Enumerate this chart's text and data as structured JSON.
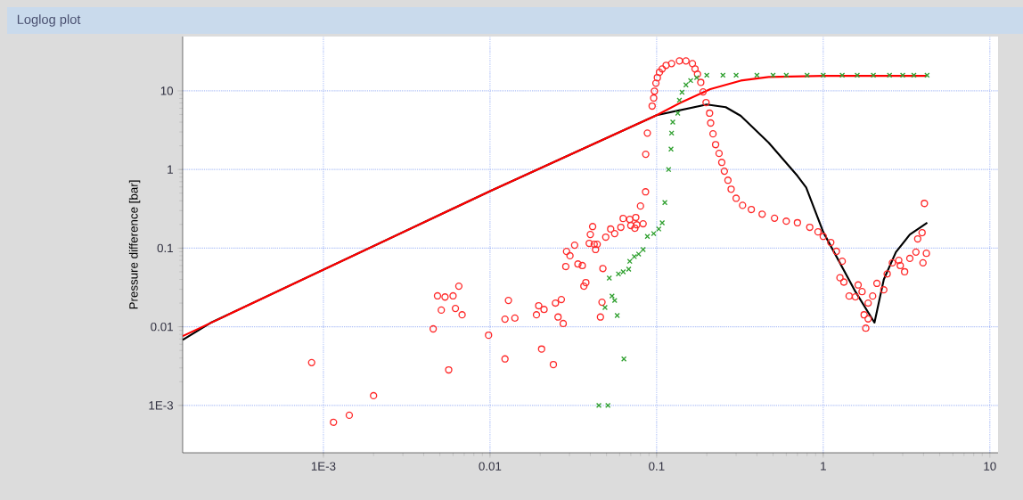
{
  "chart_data": {
    "type": "scatter",
    "title": "Loglog plot",
    "ylabel": "Pressure difference [bar]",
    "log": "xy",
    "grid": true,
    "xlim": [
      0.000143,
      11.2
    ],
    "ylim": [
      0.00025,
      49
    ],
    "xticks": [
      {
        "value": 0.001,
        "label": "1E-3"
      },
      0.01,
      0.1,
      1,
      10
    ],
    "yticks": [
      {
        "value": 0.001,
        "label": "1E-3"
      },
      0.01,
      0.1,
      1,
      10
    ],
    "series": [
      {
        "marker": "circle",
        "color": "#ff2a2a",
        "x": [
          0.00085,
          0.00115,
          0.00143,
          0.002,
          0.00456,
          0.00484,
          0.00537,
          0.006,
          0.0065,
          0.0051,
          0.0062,
          0.0068,
          0.00565,
          0.0098,
          0.0123,
          0.0123,
          0.0141,
          0.0129,
          0.0196,
          0.0211,
          0.019,
          0.0204,
          0.024,
          0.0247,
          0.0268,
          0.0256,
          0.0275,
          0.0366,
          0.0376,
          0.0285,
          0.0337,
          0.0358,
          0.0288,
          0.0302,
          0.0322,
          0.0394,
          0.0422,
          0.044,
          0.043,
          0.0413,
          0.04,
          0.0476,
          0.047,
          0.046,
          0.0495,
          0.053,
          0.056,
          0.061,
          0.063,
          0.069,
          0.075,
          0.076,
          0.074,
          0.083,
          0.08,
          0.07,
          0.0858,
          0.086,
          0.088,
          0.094,
          0.096,
          0.097,
          0.099,
          0.101,
          0.104,
          0.108,
          0.114,
          0.123,
          0.137,
          0.15,
          0.164,
          0.17,
          0.176,
          0.184,
          0.19,
          0.198,
          0.208,
          0.211,
          0.218,
          0.226,
          0.237,
          0.246,
          0.255,
          0.268,
          0.28,
          0.3,
          0.328,
          0.37,
          0.43,
          0.51,
          0.6,
          0.7,
          0.83,
          0.93,
          1.0,
          1.11,
          1.2,
          1.3,
          1.26,
          1.33,
          1.43,
          1.62,
          1.71,
          1.56,
          1.86,
          1.98,
          1.76,
          1.86,
          1.8,
          2.1,
          2.31,
          2.42,
          2.6,
          2.84,
          3.08,
          3.31,
          3.6,
          3.97,
          4.16,
          3.69,
          3.92,
          4.05,
          2.9
        ],
        "values": [
          0.0035,
          0.00061,
          0.00075,
          0.00133,
          0.0094,
          0.0247,
          0.0239,
          0.0247,
          0.0328,
          0.0163,
          0.0171,
          0.0142,
          0.00283,
          0.0078,
          0.0039,
          0.0125,
          0.0129,
          0.0216,
          0.0185,
          0.0166,
          0.0142,
          0.0052,
          0.0033,
          0.02,
          0.0222,
          0.0133,
          0.011,
          0.0328,
          0.0364,
          0.0583,
          0.0628,
          0.06,
          0.0906,
          0.08,
          0.109,
          0.115,
          0.112,
          0.112,
          0.096,
          0.188,
          0.149,
          0.055,
          0.0205,
          0.0133,
          0.138,
          0.175,
          0.153,
          0.184,
          0.238,
          0.232,
          0.245,
          0.198,
          0.179,
          0.204,
          0.343,
          0.194,
          0.52,
          1.56,
          2.9,
          6.4,
          8.1,
          9.9,
          12.5,
          14.7,
          17.2,
          19.0,
          21.1,
          22.2,
          24,
          24,
          22.2,
          19.0,
          16.3,
          12.8,
          9.7,
          7.1,
          5.2,
          3.9,
          2.84,
          2.07,
          1.6,
          1.23,
          0.95,
          0.73,
          0.56,
          0.43,
          0.35,
          0.31,
          0.27,
          0.24,
          0.22,
          0.21,
          0.184,
          0.161,
          0.141,
          0.118,
          0.091,
          0.068,
          0.042,
          0.037,
          0.0246,
          0.034,
          0.028,
          0.024,
          0.02,
          0.0246,
          0.0142,
          0.0126,
          0.0096,
          0.0356,
          0.0295,
          0.047,
          0.065,
          0.07,
          0.05,
          0.074,
          0.089,
          0.065,
          0.086,
          0.131,
          0.157,
          0.37,
          0.06
        ]
      },
      {
        "marker": "cross",
        "color": "#30a030",
        "x": [
          0.045,
          0.051,
          0.0636,
          0.049,
          0.054,
          0.056,
          0.058,
          0.052,
          0.059,
          0.063,
          0.068,
          0.069,
          0.0735,
          0.078,
          0.083,
          0.088,
          0.096,
          0.103,
          0.108,
          0.112,
          0.118,
          0.122,
          0.123,
          0.125,
          0.134,
          0.137,
          0.142,
          0.15,
          0.16,
          0.174,
          0.2,
          0.25,
          0.3,
          0.4,
          0.5,
          0.6,
          0.8,
          1.0,
          1.3,
          1.6,
          2.0,
          2.5,
          3.0,
          3.5,
          4.2
        ],
        "values": [
          0.001,
          0.001,
          0.0039,
          0.0176,
          0.0246,
          0.0216,
          0.0139,
          0.0416,
          0.047,
          0.05,
          0.054,
          0.068,
          0.078,
          0.084,
          0.096,
          0.141,
          0.153,
          0.175,
          0.21,
          0.38,
          1.0,
          1.82,
          2.9,
          4.0,
          5.2,
          7.6,
          9.6,
          11.9,
          13.5,
          14.7,
          15.8,
          15.8,
          15.8,
          15.8,
          15.8,
          15.8,
          15.8,
          15.8,
          15.8,
          15.8,
          15.8,
          15.8,
          15.8,
          15.8,
          15.8
        ]
      },
      {
        "type": "line",
        "marker": "none",
        "color": "#ff0000",
        "x": [
          0.000143,
          0.01,
          0.1,
          0.14,
          0.21,
          0.32,
          0.47,
          1.0,
          4.2
        ],
        "values": [
          0.0076,
          0.53,
          4.9,
          7.1,
          10.5,
          13.5,
          15.0,
          15.5,
          15.5
        ]
      },
      {
        "type": "line",
        "marker": "none",
        "color": "#000000",
        "x": [
          0.000143,
          0.00021,
          0.01,
          0.1,
          0.2,
          0.26,
          0.32,
          0.47,
          0.7,
          0.79,
          1.0,
          1.56,
          2.03,
          2.31,
          2.73,
          3.31,
          4.21
        ],
        "values": [
          0.0068,
          0.0112,
          0.53,
          4.9,
          6.7,
          6.2,
          4.8,
          2.2,
          0.83,
          0.59,
          0.16,
          0.028,
          0.0113,
          0.04,
          0.089,
          0.149,
          0.21
        ]
      }
    ]
  }
}
